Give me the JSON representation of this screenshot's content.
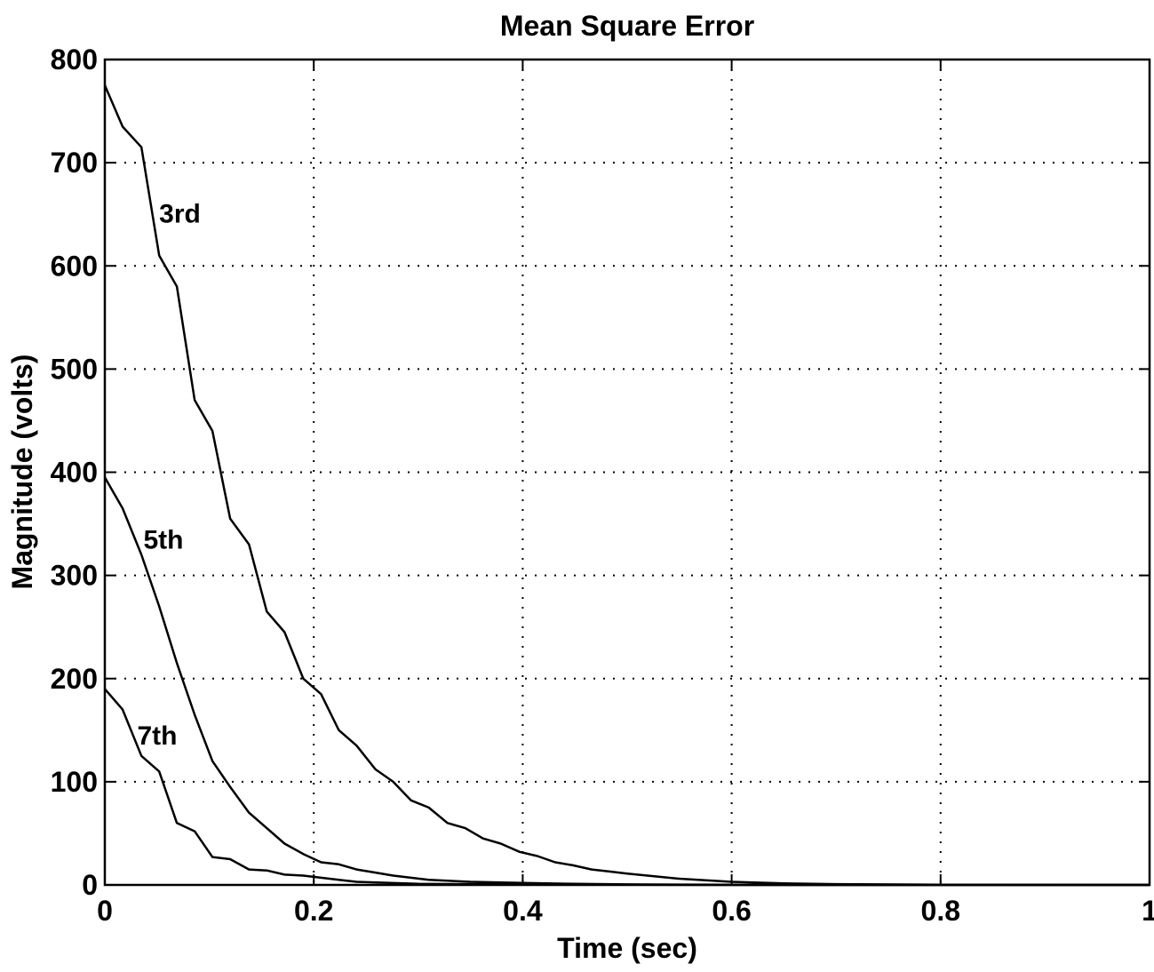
{
  "chart_data": {
    "type": "line",
    "title": "Mean Square Error",
    "xlabel": "Time (sec)",
    "ylabel": "Magnitude (volts)",
    "xlim": [
      0,
      1
    ],
    "ylim": [
      0,
      800
    ],
    "x_ticks": [
      0,
      0.2,
      0.4,
      0.6,
      0.8,
      1
    ],
    "x_tick_labels": [
      "0",
      "0.2",
      "0.4",
      "0.6",
      "0.8",
      "1"
    ],
    "y_ticks": [
      0,
      100,
      200,
      300,
      400,
      500,
      600,
      700,
      800
    ],
    "y_tick_labels": [
      "0",
      "100",
      "200",
      "300",
      "400",
      "500",
      "600",
      "700",
      "800"
    ],
    "grid": true,
    "series": [
      {
        "name": "3rd",
        "x": [
          0,
          0.017,
          0.035,
          0.052,
          0.069,
          0.086,
          0.103,
          0.12,
          0.138,
          0.155,
          0.172,
          0.19,
          0.207,
          0.224,
          0.241,
          0.259,
          0.276,
          0.293,
          0.31,
          0.328,
          0.345,
          0.362,
          0.379,
          0.397,
          0.414,
          0.431,
          0.448,
          0.466,
          0.483,
          0.5,
          0.55,
          0.6,
          0.65,
          0.7,
          0.8,
          0.9,
          1.0
        ],
        "y": [
          775,
          735,
          715,
          610,
          580,
          470,
          440,
          355,
          330,
          265,
          245,
          200,
          185,
          150,
          135,
          112,
          100,
          82,
          75,
          60,
          55,
          45,
          40,
          32,
          28,
          22,
          19,
          15,
          13,
          11,
          6,
          3,
          1.5,
          0.8,
          0.3,
          0.1,
          0
        ]
      },
      {
        "name": "5th",
        "x": [
          0,
          0.017,
          0.035,
          0.052,
          0.069,
          0.086,
          0.103,
          0.12,
          0.138,
          0.155,
          0.172,
          0.19,
          0.207,
          0.224,
          0.241,
          0.259,
          0.276,
          0.293,
          0.31,
          0.35,
          0.4,
          0.45,
          0.5,
          0.6,
          0.8,
          1.0
        ],
        "y": [
          395,
          365,
          320,
          270,
          215,
          165,
          120,
          95,
          70,
          55,
          40,
          30,
          22,
          20,
          15,
          12,
          9,
          7,
          5,
          3,
          2,
          1,
          0.5,
          0.2,
          0,
          0
        ]
      },
      {
        "name": "7th",
        "x": [
          0,
          0.017,
          0.035,
          0.052,
          0.069,
          0.086,
          0.103,
          0.12,
          0.138,
          0.155,
          0.172,
          0.19,
          0.207,
          0.224,
          0.241,
          0.3,
          0.4,
          0.6,
          0.8,
          1.0
        ],
        "y": [
          190,
          170,
          125,
          110,
          60,
          52,
          27,
          25,
          15,
          14,
          10,
          9,
          7,
          5,
          3,
          1,
          0.5,
          0,
          0,
          0
        ]
      }
    ],
    "annotations": [
      {
        "text": "3rd",
        "x": 0.052,
        "y": 642
      },
      {
        "text": "5th",
        "x": 0.037,
        "y": 326
      },
      {
        "text": "7th",
        "x": 0.031,
        "y": 136
      }
    ]
  }
}
